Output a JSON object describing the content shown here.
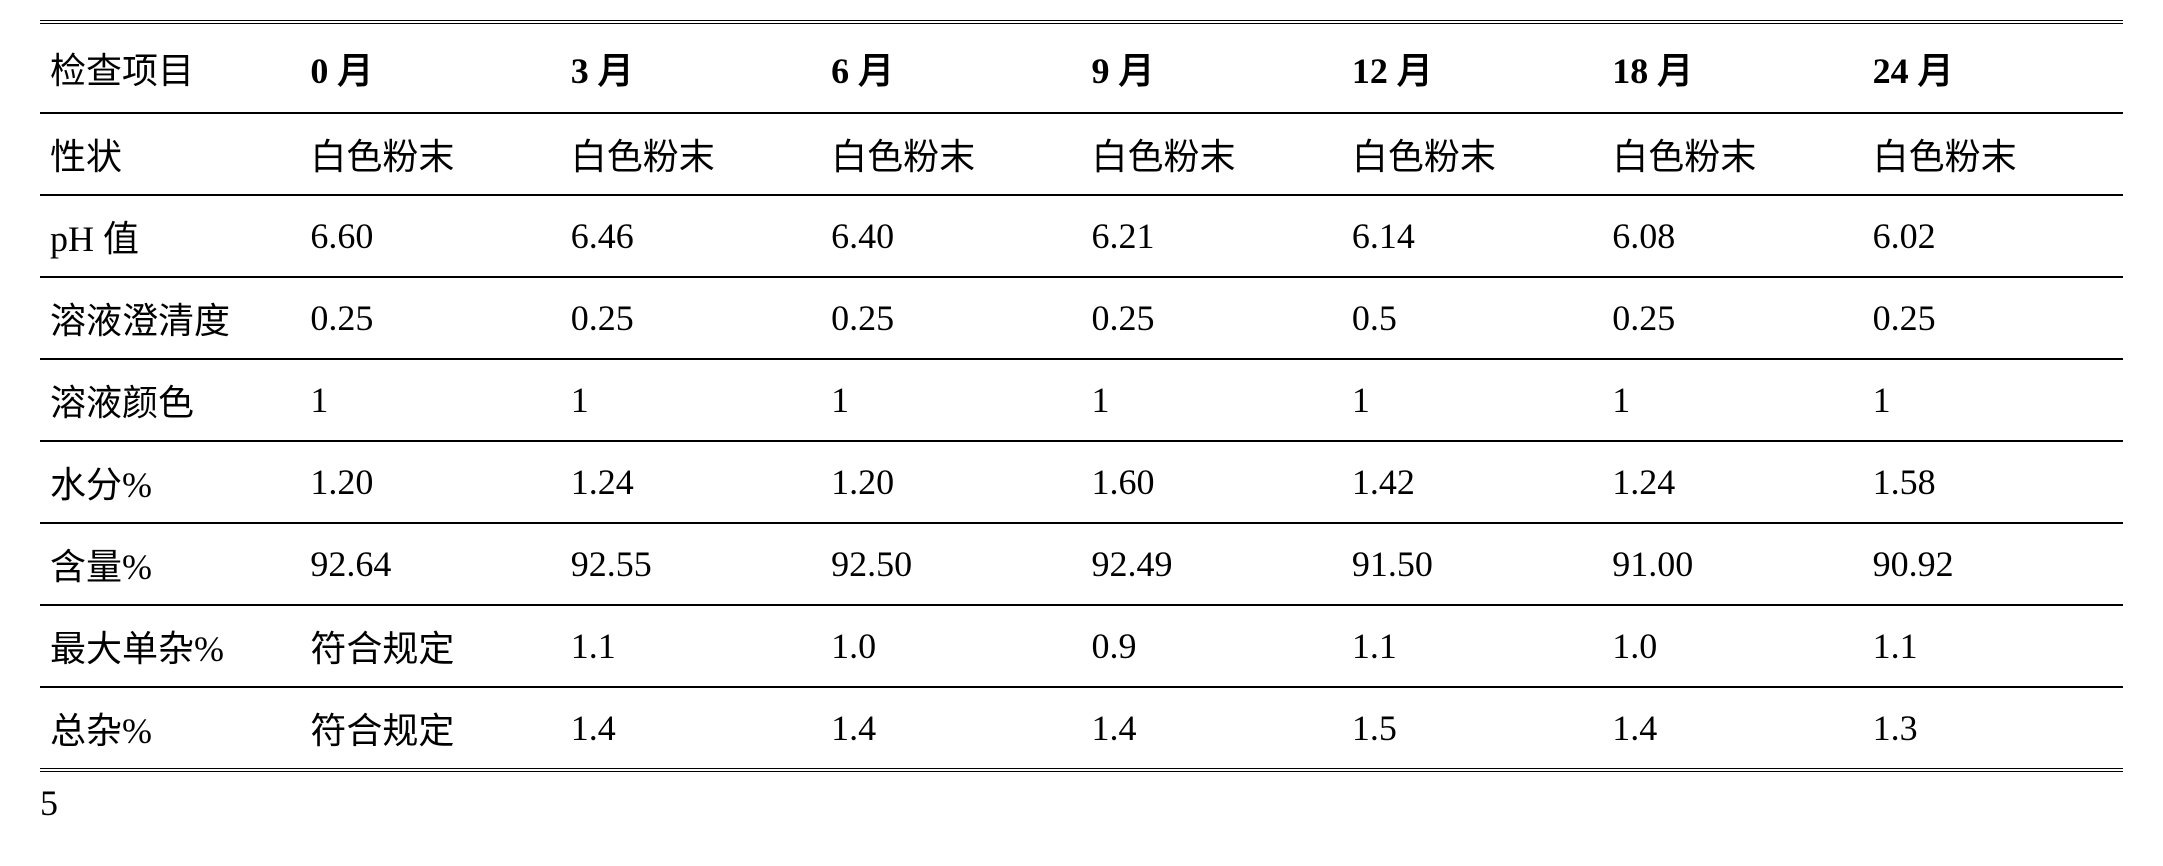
{
  "table": {
    "background_color": "#ffffff",
    "text_color": "#000000",
    "border_color": "#000000",
    "header_border_top": "double 4px",
    "header_border_bottom": "solid 2px",
    "row_border": "solid 2px",
    "last_row_border": "double 4px",
    "header_font_weight": "bold",
    "header_fontsize": 36,
    "body_fontsize": 36,
    "columns": [
      "检查项目",
      "0 月",
      "3 月",
      "6 月",
      "9 月",
      "12 月",
      "18 月",
      "24 月"
    ],
    "rows": [
      {
        "label": "性状",
        "values": [
          "白色粉末",
          "白色粉末",
          "白色粉末",
          "白色粉末",
          "白色粉末",
          "白色粉末",
          "白色粉末"
        ]
      },
      {
        "label": "pH 值",
        "values": [
          "6.60",
          "6.46",
          "6.40",
          "6.21",
          "6.14",
          "6.08",
          "6.02"
        ]
      },
      {
        "label": "溶液澄清度",
        "values": [
          "0.25",
          "0.25",
          "0.25",
          "0.25",
          "0.5",
          "0.25",
          "0.25"
        ]
      },
      {
        "label": "溶液颜色",
        "values": [
          "1",
          "1",
          "1",
          "1",
          "1",
          "1",
          "1"
        ]
      },
      {
        "label": "水分%",
        "values": [
          "1.20",
          "1.24",
          "1.20",
          "1.60",
          "1.42",
          "1.24",
          "1.58"
        ]
      },
      {
        "label": "含量%",
        "values": [
          "92.64",
          "92.55",
          "92.50",
          "92.49",
          "91.50",
          "91.00",
          "90.92"
        ]
      },
      {
        "label": "最大单杂%",
        "values": [
          "符合规定",
          "1.1",
          "1.0",
          "0.9",
          "1.1",
          "1.0",
          "1.1"
        ]
      },
      {
        "label": "总杂%",
        "values": [
          "符合规定",
          "1.4",
          "1.4",
          "1.4",
          "1.5",
          "1.4",
          "1.3"
        ]
      }
    ]
  },
  "footer_number": "5"
}
